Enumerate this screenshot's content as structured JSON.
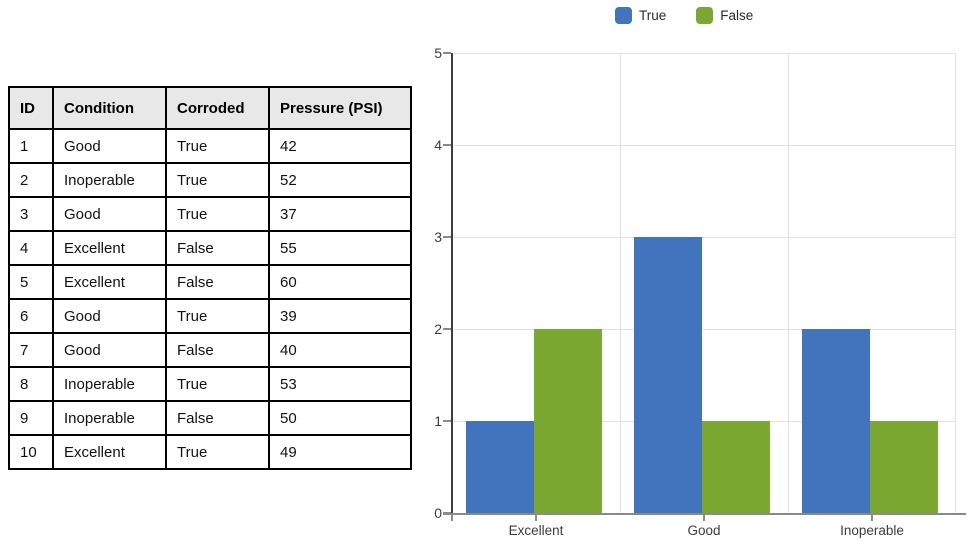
{
  "table": {
    "headers": [
      "ID",
      "Condition",
      "Corroded",
      "Pressure (PSI)"
    ],
    "rows": [
      [
        "1",
        "Good",
        "True",
        "42"
      ],
      [
        "2",
        "Inoperable",
        "True",
        "52"
      ],
      [
        "3",
        "Good",
        "True",
        "37"
      ],
      [
        "4",
        "Excellent",
        "False",
        "55"
      ],
      [
        "5",
        "Excellent",
        "False",
        "60"
      ],
      [
        "6",
        "Good",
        "True",
        "39"
      ],
      [
        "7",
        "Good",
        "False",
        "40"
      ],
      [
        "8",
        "Inoperable",
        "True",
        "53"
      ],
      [
        "9",
        "Inoperable",
        "False",
        "50"
      ],
      [
        "10",
        "Excellent",
        "True",
        "49"
      ]
    ]
  },
  "chart_data": {
    "type": "bar",
    "categories": [
      "Excellent",
      "Good",
      "Inoperable"
    ],
    "series": [
      {
        "name": "True",
        "color": "#4174BD",
        "values": [
          1,
          3,
          2
        ]
      },
      {
        "name": "False",
        "color": "#7BA830",
        "values": [
          2,
          1,
          1
        ]
      }
    ],
    "title": "",
    "xlabel": "",
    "ylabel": "",
    "ylim": [
      0,
      5
    ],
    "yticks": [
      0,
      1,
      2,
      3,
      4,
      5
    ],
    "grid": true,
    "legend_position": "top",
    "colors": {
      "gridline": "#e2e2e2",
      "y_axis": "#3d3d3d",
      "x_axis": "#8a8a8a",
      "tick_label": "#3d3d3d"
    }
  }
}
